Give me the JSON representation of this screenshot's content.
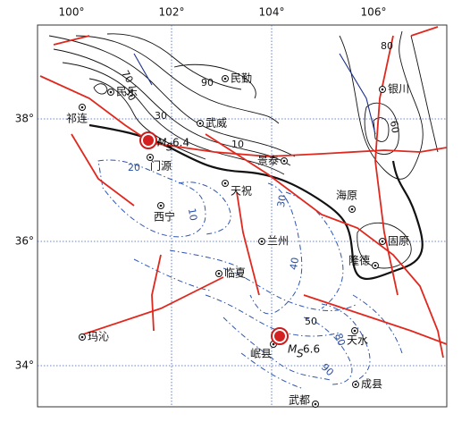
{
  "map": {
    "lon_labels": [
      "100°",
      "102°",
      "104°",
      "106°"
    ],
    "lat_labels": [
      "38°",
      "36°",
      "34°"
    ],
    "cities": [
      "民勤",
      "银川",
      "民乐",
      "祁连",
      "武威",
      "门源",
      "景泰",
      "天祝",
      "海原",
      "西宁",
      "兰州",
      "固原",
      "隆德",
      "临夏",
      "玛沁",
      "岷县",
      "天水",
      "成县",
      "武都"
    ],
    "contour_labels": [
      "90",
      "80",
      "70",
      "30",
      "30",
      "10",
      "20",
      "10",
      "30",
      "40",
      "50",
      "60",
      "80",
      "90"
    ],
    "events": [
      {
        "symbol": "M",
        "subscript": "S",
        "magnitude": "6.4"
      },
      {
        "symbol": "M",
        "subscript": "S",
        "magnitude": "6.6"
      }
    ]
  }
}
